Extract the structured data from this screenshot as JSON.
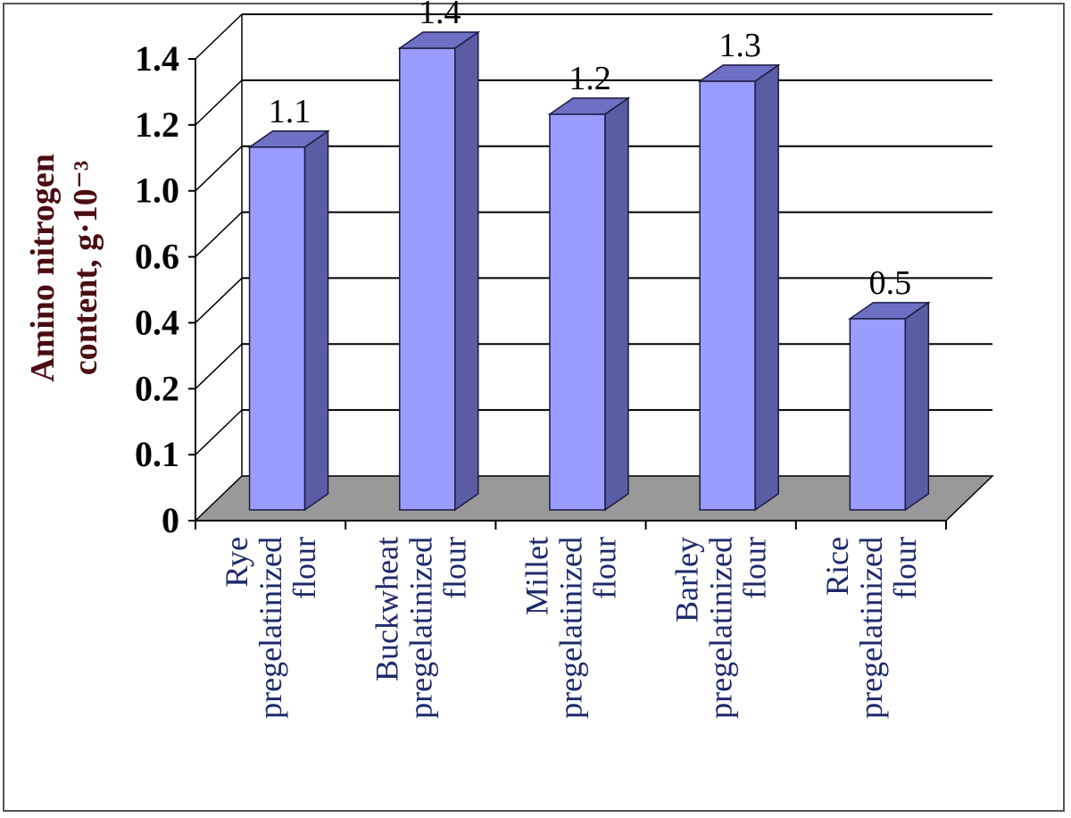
{
  "chart_data": {
    "type": "bar",
    "title": "",
    "ylabel_lines": [
      "Amino nitrogen",
      "content, g·10⁻³"
    ],
    "ylim": [
      0,
      1.4
    ],
    "y_tick_labels": [
      "0",
      "0.1",
      "0.2",
      "0.4",
      "0.6",
      "1.0",
      "1.2",
      "1.4"
    ],
    "categories": [
      [
        "Rye",
        "pregelatinized",
        "flour"
      ],
      [
        "Buckwheat",
        "pregelatinized",
        "flour"
      ],
      [
        "Millet",
        "pregelatinized",
        "flour"
      ],
      [
        "Barley",
        "pregelatinized",
        "flour"
      ],
      [
        "Rice",
        "pregelatinized",
        "flour"
      ]
    ],
    "values": [
      1.1,
      1.4,
      1.2,
      1.3,
      0.5
    ],
    "value_labels": [
      "1.1",
      "1.4",
      "1.2",
      "1.3",
      "0.5"
    ],
    "grid": true,
    "colors": {
      "bar_front": "#9a9cff",
      "bar_side": "#5b5da4",
      "bar_top": "#6e70c4",
      "floor": "#999999",
      "gridline": "#000000"
    }
  }
}
